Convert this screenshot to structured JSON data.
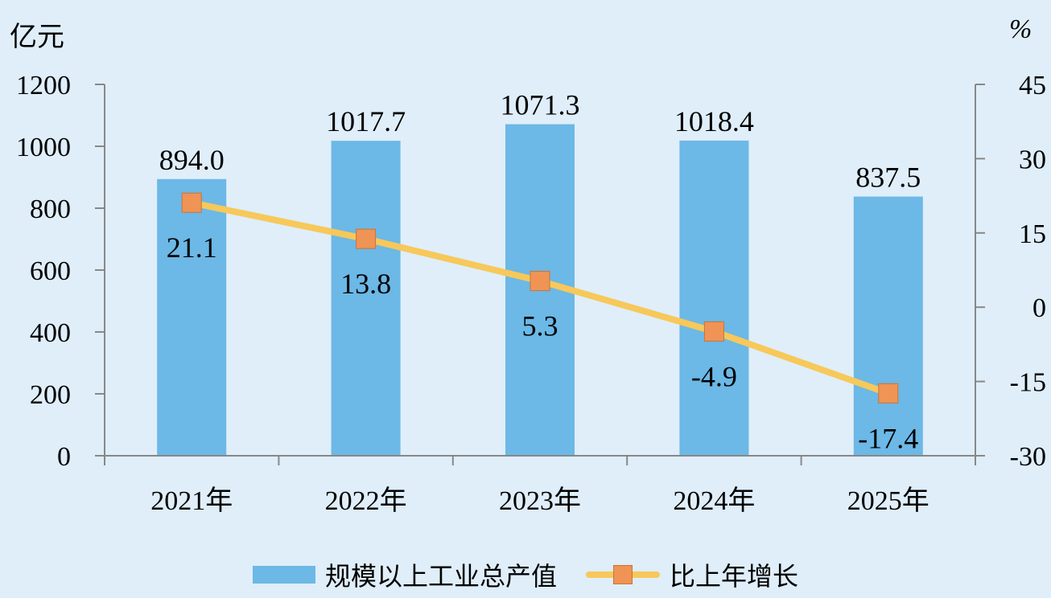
{
  "chart_data": {
    "type": "bar+line",
    "categories": [
      "2021年",
      "2022年",
      "2023年",
      "2024年",
      "2025年"
    ],
    "series": [
      {
        "name": "规模以上工业总产值",
        "type": "bar",
        "axis": "left",
        "values": [
          894.0,
          1017.7,
          1071.3,
          1018.4,
          837.5
        ],
        "labels": [
          "894.0",
          "1017.7",
          "1071.3",
          "1018.4",
          "837.5"
        ]
      },
      {
        "name": "比上年增长",
        "type": "line",
        "axis": "right",
        "values": [
          21.1,
          13.8,
          5.3,
          -4.9,
          -17.4
        ],
        "labels": [
          "21.1",
          "13.8",
          "5.3",
          "-4.9",
          "-17.4"
        ]
      }
    ],
    "y_left": {
      "unit": "亿元",
      "ylim": [
        0,
        1200
      ],
      "ticks": [
        0,
        200,
        400,
        600,
        800,
        1000,
        1200
      ]
    },
    "y_right": {
      "unit": "%",
      "ylim": [
        -30,
        45
      ],
      "ticks": [
        -30,
        -15,
        0,
        15,
        30,
        45
      ]
    },
    "grid": false,
    "legend_position": "bottom",
    "colors": {
      "bar": "#6cb8e6",
      "line": "#f7c85a",
      "marker": "#ef9455",
      "background": "#dfeef9",
      "axis": "#888888"
    }
  }
}
